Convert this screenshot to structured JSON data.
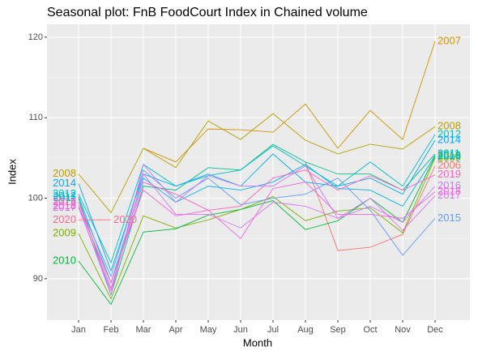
{
  "chart_data": {
    "type": "line",
    "title": "Seasonal plot: FnB FoodCourt Index in Chained volume",
    "x_label": "Month",
    "y_label": "Index",
    "categories": [
      "Jan",
      "Feb",
      "Mar",
      "Apr",
      "May",
      "Jun",
      "Jul",
      "Aug",
      "Sep",
      "Oct",
      "Nov",
      "Dec"
    ],
    "ylim": [
      84.85,
      121.6
    ],
    "yticks": [
      90,
      100,
      110,
      120
    ],
    "grid": true,
    "series": [
      {
        "name": "2006",
        "color": "#F8766D",
        "values": [
          null,
          null,
          null,
          null,
          null,
          null,
          null,
          104.5,
          93.5,
          93.9,
          95.5,
          104.0
        ]
      },
      {
        "name": "2007",
        "color": "#D39200",
        "values": [
          null,
          null,
          106.2,
          104.5,
          108.6,
          108.5,
          108.2,
          111.7,
          106.2,
          110.9,
          107.3,
          119.5
        ]
      },
      {
        "name": "2008",
        "color": "#B79F00",
        "values": [
          103.0,
          98.2,
          106.2,
          103.8,
          109.6,
          107.3,
          110.5,
          107.2,
          105.5,
          106.7,
          106.1,
          108.9
        ]
      },
      {
        "name": "2009",
        "color": "#7CAE00",
        "values": [
          95.6,
          87.5,
          97.8,
          96.3,
          97.3,
          98.6,
          100.2,
          97.2,
          98.4,
          98.8,
          95.7,
          105.0
        ]
      },
      {
        "name": "2010",
        "color": "#00BA38",
        "values": [
          92.2,
          86.8,
          95.8,
          96.2,
          97.9,
          98.6,
          99.7,
          96.1,
          97.2,
          100.0,
          97.0,
          105.2
        ]
      },
      {
        "name": "2011",
        "color": "#00C08B",
        "values": [
          100.0,
          88.0,
          101.5,
          101.0,
          103.8,
          103.5,
          106.7,
          104.5,
          103.0,
          103.0,
          101.0,
          105.5
        ]
      },
      {
        "name": "2012",
        "color": "#00BFC4",
        "values": [
          100.5,
          92.0,
          104.2,
          101.5,
          102.8,
          103.5,
          106.5,
          104.0,
          101.5,
          104.5,
          101.5,
          107.9
        ]
      },
      {
        "name": "2013",
        "color": "#00B4F0",
        "values": [
          100.2,
          89.5,
          102.5,
          99.5,
          101.5,
          101.0,
          102.0,
          104.2,
          101.2,
          101.0,
          99.0,
          105.3
        ]
      },
      {
        "name": "2014",
        "color": "#00A9FF",
        "values": [
          101.8,
          91.0,
          103.0,
          101.5,
          103.0,
          101.5,
          105.5,
          102.0,
          101.5,
          102.5,
          100.5,
          107.2
        ]
      },
      {
        "name": "2015",
        "color": "#619CFF",
        "values": [
          99.5,
          90.3,
          103.5,
          100.0,
          102.5,
          99.2,
          100.0,
          100.5,
          102.5,
          98.5,
          92.9,
          97.5
        ]
      },
      {
        "name": "2016",
        "color": "#C77CFF",
        "values": [
          99.0,
          88.0,
          104.2,
          99.5,
          102.8,
          101.5,
          101.5,
          104.0,
          97.5,
          99.0,
          97.0,
          101.5
        ]
      },
      {
        "name": "2017",
        "color": "#DB72FB",
        "values": [
          98.8,
          88.5,
          103.0,
          98.0,
          98.0,
          96.3,
          99.5,
          99.0,
          97.5,
          100.0,
          96.0,
          100.3
        ]
      },
      {
        "name": "2018",
        "color": "#F564E3",
        "values": [
          99.0,
          89.5,
          101.0,
          97.8,
          98.5,
          95.0,
          101.2,
          102.0,
          98.0,
          98.0,
          97.5,
          100.8
        ]
      },
      {
        "name": "2019",
        "color": "#FF61C3",
        "values": [
          99.5,
          88.8,
          102.0,
          100.5,
          98.5,
          99.0,
          102.5,
          103.5,
          101.0,
          102.8,
          101.0,
          102.9
        ]
      },
      {
        "name": "2020",
        "color": "#FF6C91",
        "values": [
          97.3,
          97.3,
          null,
          null,
          null,
          null,
          null,
          null,
          null,
          null,
          null,
          null
        ]
      }
    ]
  }
}
